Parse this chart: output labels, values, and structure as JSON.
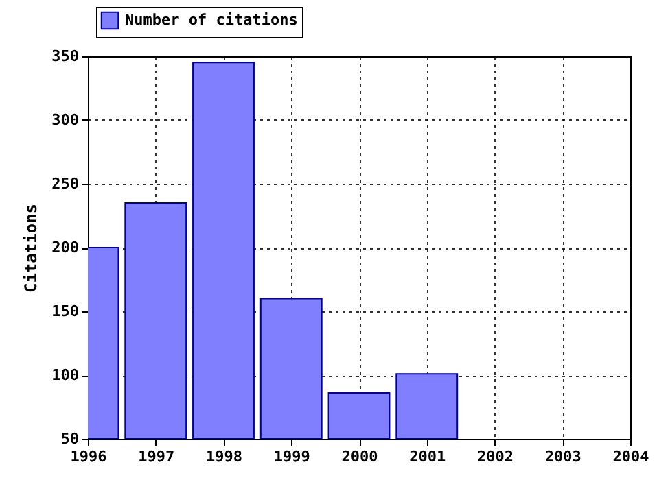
{
  "chart_data": {
    "type": "bar",
    "ylabel": "Citations",
    "x": [
      1996,
      1997,
      1998,
      1999,
      2000,
      2001
    ],
    "series": [
      {
        "name": "Number of citations",
        "color": "#8080ff",
        "values": [
          200,
          235,
          345,
          160,
          86,
          101
        ]
      }
    ],
    "xlim": [
      1996,
      2004
    ],
    "xticks": [
      1996,
      1997,
      1998,
      1999,
      2000,
      2001,
      2002,
      2003,
      2004
    ],
    "ylim": [
      50,
      350
    ],
    "yticks": [
      50,
      100,
      150,
      200,
      250,
      300,
      350
    ],
    "grid": true,
    "legend": "top left"
  }
}
